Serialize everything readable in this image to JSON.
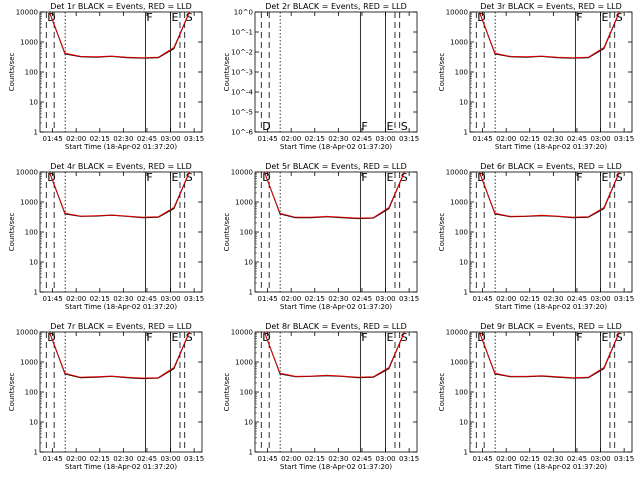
{
  "chart_data": [
    {
      "type": "line",
      "title": "Det 1r BLACK = Events, RED = LLD",
      "xlabel": "Start Time (18-Apr-02 01:37:20)",
      "ylabel": "Counts/sec",
      "x_tick_labels": [
        "01:45",
        "02:00",
        "02:15",
        "02:30",
        "02:45",
        "03:00",
        "03:15"
      ],
      "y_tick_labels": [
        "1",
        "10",
        "100",
        "1000",
        "10000"
      ],
      "y_log": true,
      "ylim": [
        1,
        10000
      ],
      "markers": [
        {
          "time": "01:41",
          "label": "D",
          "style": "dashed"
        },
        {
          "time": "01:46",
          "label": "",
          "style": "dashed"
        },
        {
          "time": "01:53",
          "label": "",
          "style": "dotted"
        },
        {
          "time": "02:44",
          "label": "F",
          "style": "solid"
        },
        {
          "time": "03:00",
          "label": "E",
          "style": "solid"
        },
        {
          "time": "03:06",
          "label": "",
          "style": "dashed"
        },
        {
          "time": "03:09",
          "label": "S",
          "style": "dashed"
        }
      ],
      "series": [
        {
          "values": [
            10000,
            400,
            320,
            310,
            330,
            300,
            290,
            300,
            600,
            10000
          ]
        },
        {
          "values": [
            10000,
            420,
            330,
            320,
            340,
            310,
            300,
            310,
            650,
            10000
          ]
        }
      ]
    },
    {
      "type": "line",
      "title": "Det 2r BLACK = Events, RED = LLD",
      "xlabel": "Start Time (18-Apr-02 01:37:20)",
      "ylabel": "Counts/sec",
      "x_tick_labels": [
        "01:45",
        "02:00",
        "02:15",
        "02:30",
        "02:45",
        "03:00",
        "03:15"
      ],
      "y_tick_labels": [
        "10^0",
        "10^-1",
        "10^-2",
        "10^-3",
        "10^-4",
        "10^-5",
        "10^-6"
      ],
      "y_log": true,
      "note_empty": true,
      "markers": [
        {
          "time": "01:41",
          "label": "D",
          "style": "dashed"
        },
        {
          "time": "01:46",
          "label": "",
          "style": "dashed"
        },
        {
          "time": "01:53",
          "label": "",
          "style": "dotted"
        },
        {
          "time": "02:44",
          "label": "F",
          "style": "solid"
        },
        {
          "time": "03:00",
          "label": "E",
          "style": "solid"
        },
        {
          "time": "03:06",
          "label": "",
          "style": "dashed"
        },
        {
          "time": "03:09",
          "label": "S",
          "style": "dashed"
        }
      ],
      "series": []
    },
    {
      "type": "line",
      "title": "Det 3r BLACK = Events, RED = LLD",
      "xlabel": "Start Time (18-Apr-02 01:37:20)",
      "ylabel": "Counts/sec",
      "x_tick_labels": [
        "01:45",
        "02:00",
        "02:15",
        "02:30",
        "02:45",
        "03:00",
        "03:15"
      ],
      "y_tick_labels": [
        "1",
        "10",
        "100",
        "1000",
        "10000"
      ],
      "y_log": true,
      "ylim": [
        1,
        10000
      ],
      "markers": [
        {
          "time": "01:41",
          "label": "D",
          "style": "dashed"
        },
        {
          "time": "01:46",
          "label": "",
          "style": "dashed"
        },
        {
          "time": "01:53",
          "label": "",
          "style": "dotted"
        },
        {
          "time": "02:44",
          "label": "F",
          "style": "solid"
        },
        {
          "time": "03:00",
          "label": "E",
          "style": "solid"
        },
        {
          "time": "03:06",
          "label": "",
          "style": "dashed"
        },
        {
          "time": "03:09",
          "label": "S",
          "style": "dashed"
        }
      ],
      "series": [
        {
          "values": [
            10000,
            400,
            320,
            310,
            330,
            300,
            290,
            300,
            600,
            10000
          ]
        },
        {
          "values": [
            10000,
            420,
            330,
            320,
            340,
            310,
            300,
            310,
            650,
            10000
          ]
        }
      ]
    },
    {
      "type": "line",
      "title": "Det 4r BLACK = Events, RED = LLD",
      "xlabel": "Start Time (18-Apr-02 01:37:20)",
      "ylabel": "Counts/sec",
      "x_tick_labels": [
        "01:45",
        "02:00",
        "02:15",
        "02:30",
        "02:45",
        "03:00",
        "03:15"
      ],
      "y_tick_labels": [
        "1",
        "10",
        "100",
        "1000",
        "10000"
      ],
      "y_log": true,
      "ylim": [
        1,
        10000
      ],
      "markers": [
        {
          "time": "01:41",
          "label": "D",
          "style": "dashed"
        },
        {
          "time": "01:46",
          "label": "",
          "style": "dashed"
        },
        {
          "time": "01:53",
          "label": "",
          "style": "dotted"
        },
        {
          "time": "02:44",
          "label": "F",
          "style": "solid"
        },
        {
          "time": "03:00",
          "label": "E",
          "style": "solid"
        },
        {
          "time": "03:06",
          "label": "",
          "style": "dashed"
        },
        {
          "time": "03:09",
          "label": "S",
          "style": "dashed"
        }
      ],
      "series": [
        {
          "values": [
            10000,
            400,
            330,
            340,
            360,
            330,
            300,
            310,
            600,
            10000
          ]
        },
        {
          "values": [
            10000,
            420,
            340,
            350,
            370,
            340,
            310,
            320,
            650,
            10000
          ]
        }
      ]
    },
    {
      "type": "line",
      "title": "Det 5r BLACK = Events, RED = LLD",
      "xlabel": "Start Time (18-Apr-02 01:37:20)",
      "ylabel": "Counts/sec",
      "x_tick_labels": [
        "01:45",
        "02:00",
        "02:15",
        "02:30",
        "02:45",
        "03:00",
        "03:15"
      ],
      "y_tick_labels": [
        "1",
        "10",
        "100",
        "1000",
        "10000"
      ],
      "y_log": true,
      "ylim": [
        1,
        10000
      ],
      "markers": [
        {
          "time": "01:41",
          "label": "D",
          "style": "dashed"
        },
        {
          "time": "01:46",
          "label": "",
          "style": "dashed"
        },
        {
          "time": "01:53",
          "label": "",
          "style": "dotted"
        },
        {
          "time": "02:44",
          "label": "F",
          "style": "solid"
        },
        {
          "time": "03:00",
          "label": "E",
          "style": "solid"
        },
        {
          "time": "03:06",
          "label": "",
          "style": "dashed"
        },
        {
          "time": "03:09",
          "label": "S",
          "style": "dashed"
        }
      ],
      "series": [
        {
          "values": [
            10000,
            400,
            300,
            300,
            320,
            300,
            280,
            290,
            600,
            10000
          ]
        },
        {
          "values": [
            10000,
            420,
            310,
            310,
            330,
            310,
            290,
            300,
            650,
            10000
          ]
        }
      ]
    },
    {
      "type": "line",
      "title": "Det 6r BLACK = Events, RED = LLD",
      "xlabel": "Start Time (18-Apr-02 01:37:20)",
      "ylabel": "Counts/sec",
      "x_tick_labels": [
        "01:45",
        "02:00",
        "02:15",
        "02:30",
        "02:45",
        "03:00",
        "03:15"
      ],
      "y_tick_labels": [
        "1",
        "10",
        "100",
        "1000",
        "10000"
      ],
      "y_log": true,
      "ylim": [
        1,
        10000
      ],
      "markers": [
        {
          "time": "01:41",
          "label": "D",
          "style": "dashed"
        },
        {
          "time": "01:46",
          "label": "",
          "style": "dashed"
        },
        {
          "time": "01:53",
          "label": "",
          "style": "dotted"
        },
        {
          "time": "02:44",
          "label": "F",
          "style": "solid"
        },
        {
          "time": "03:00",
          "label": "E",
          "style": "solid"
        },
        {
          "time": "03:06",
          "label": "",
          "style": "dashed"
        },
        {
          "time": "03:09",
          "label": "S",
          "style": "dashed"
        }
      ],
      "series": [
        {
          "values": [
            10000,
            400,
            320,
            330,
            350,
            330,
            300,
            310,
            600,
            10000
          ]
        },
        {
          "values": [
            10000,
            420,
            330,
            340,
            360,
            340,
            310,
            320,
            650,
            10000
          ]
        }
      ]
    },
    {
      "type": "line",
      "title": "Det 7r BLACK = Events, RED = LLD",
      "xlabel": "Start Time (18-Apr-02 01:37:20)",
      "ylabel": "Counts/sec",
      "x_tick_labels": [
        "01:45",
        "02:00",
        "02:15",
        "02:30",
        "02:45",
        "03:00",
        "03:15"
      ],
      "y_tick_labels": [
        "1",
        "10",
        "100",
        "1000",
        "10000"
      ],
      "y_log": true,
      "ylim": [
        1,
        10000
      ],
      "markers": [
        {
          "time": "01:41",
          "label": "D",
          "style": "dashed"
        },
        {
          "time": "01:46",
          "label": "",
          "style": "dashed"
        },
        {
          "time": "01:53",
          "label": "",
          "style": "dotted"
        },
        {
          "time": "02:44",
          "label": "F",
          "style": "solid"
        },
        {
          "time": "03:00",
          "label": "E",
          "style": "solid"
        },
        {
          "time": "03:06",
          "label": "",
          "style": "dashed"
        },
        {
          "time": "03:09",
          "label": "S",
          "style": "dashed"
        }
      ],
      "series": [
        {
          "values": [
            10000,
            400,
            300,
            310,
            330,
            300,
            280,
            290,
            600,
            10000
          ]
        },
        {
          "values": [
            10000,
            420,
            310,
            320,
            340,
            310,
            290,
            300,
            650,
            10000
          ]
        }
      ]
    },
    {
      "type": "line",
      "title": "Det 8r BLACK = Events, RED = LLD",
      "xlabel": "Start Time (18-Apr-02 01:37:20)",
      "ylabel": "Counts/sec",
      "x_tick_labels": [
        "01:45",
        "02:00",
        "02:15",
        "02:30",
        "02:45",
        "03:00",
        "03:15"
      ],
      "y_tick_labels": [
        "1",
        "10",
        "100",
        "1000",
        "10000"
      ],
      "y_log": true,
      "ylim": [
        1,
        10000
      ],
      "markers": [
        {
          "time": "01:41",
          "label": "D",
          "style": "dashed"
        },
        {
          "time": "01:46",
          "label": "",
          "style": "dashed"
        },
        {
          "time": "01:53",
          "label": "",
          "style": "dotted"
        },
        {
          "time": "02:44",
          "label": "F",
          "style": "solid"
        },
        {
          "time": "03:00",
          "label": "E",
          "style": "solid"
        },
        {
          "time": "03:06",
          "label": "",
          "style": "dashed"
        },
        {
          "time": "03:09",
          "label": "S",
          "style": "dashed"
        }
      ],
      "series": [
        {
          "values": [
            10000,
            400,
            320,
            330,
            350,
            330,
            300,
            310,
            600,
            10000
          ]
        },
        {
          "values": [
            10000,
            420,
            330,
            340,
            360,
            340,
            310,
            320,
            650,
            10000
          ]
        }
      ]
    },
    {
      "type": "line",
      "title": "Det 9r BLACK = Events, RED = LLD",
      "xlabel": "Start Time (18-Apr-02 01:37:20)",
      "ylabel": "Counts/sec",
      "x_tick_labels": [
        "01:45",
        "02:00",
        "02:15",
        "02:30",
        "02:45",
        "03:00",
        "03:15"
      ],
      "y_tick_labels": [
        "1",
        "10",
        "100",
        "1000",
        "10000"
      ],
      "y_log": true,
      "ylim": [
        1,
        10000
      ],
      "markers": [
        {
          "time": "01:41",
          "label": "D",
          "style": "dashed"
        },
        {
          "time": "01:46",
          "label": "",
          "style": "dashed"
        },
        {
          "time": "01:53",
          "label": "",
          "style": "dotted"
        },
        {
          "time": "02:44",
          "label": "F",
          "style": "solid"
        },
        {
          "time": "03:00",
          "label": "E",
          "style": "solid"
        },
        {
          "time": "03:06",
          "label": "",
          "style": "dashed"
        },
        {
          "time": "03:09",
          "label": "S",
          "style": "dashed"
        }
      ],
      "series": [
        {
          "values": [
            10000,
            400,
            320,
            320,
            340,
            310,
            290,
            300,
            600,
            10000
          ]
        },
        {
          "values": [
            10000,
            420,
            330,
            330,
            350,
            320,
            300,
            310,
            650,
            10000
          ]
        }
      ]
    }
  ]
}
